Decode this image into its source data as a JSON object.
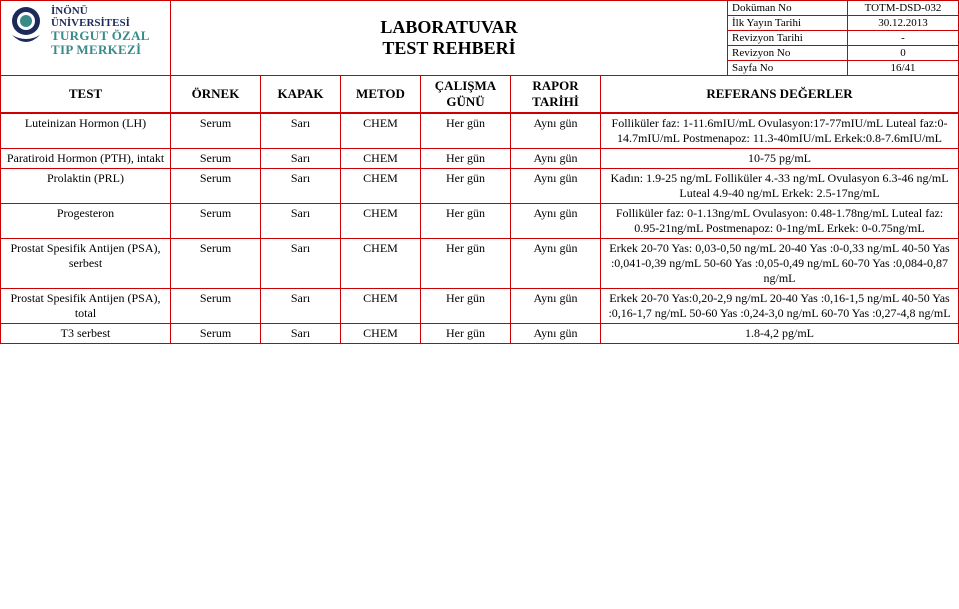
{
  "header": {
    "logo": {
      "line1": "İNÖNÜ ÜNİVERSİTESİ",
      "line2": "TURGUT ÖZAL",
      "line3": "TIP MERKEZİ"
    },
    "title_line1": "LABORATUVAR",
    "title_line2": "TEST REHBERİ",
    "docinfo": [
      {
        "label": "Doküman No",
        "value": "TOTM-DSD-032"
      },
      {
        "label": "İlk Yayın Tarihi",
        "value": "30.12.2013"
      },
      {
        "label": "Revizyon Tarihi",
        "value": "-"
      },
      {
        "label": "Revizyon No",
        "value": "0"
      },
      {
        "label": "Sayfa No",
        "value": "16/41"
      }
    ]
  },
  "columns": {
    "test": "TEST",
    "ornek": "ÖRNEK",
    "kapak": "KAPAK",
    "metod": "METOD",
    "calisma": "ÇALIŞMA GÜNÜ",
    "rapor": "RAPOR TARİHİ",
    "ref": "REFERANS DEĞERLER"
  },
  "rows": [
    {
      "test": "Luteinizan Hormon (LH)",
      "ornek": "Serum",
      "kapak": "Sarı",
      "metod": "CHEM",
      "calisma": "Her gün",
      "rapor": "Aynı gün",
      "ref": "Folliküler faz: 1-11.6mIU/mL Ovulasyon:17-77mIU/mL Luteal faz:0-14.7mIU/mL Postmenapoz: 11.3-40mIU/mL Erkek:0.8-7.6mIU/mL"
    },
    {
      "test": "Paratiroid Hormon (PTH), intakt",
      "ornek": "Serum",
      "kapak": "Sarı",
      "metod": "CHEM",
      "calisma": "Her gün",
      "rapor": "Aynı gün",
      "ref": "10-75 pg/mL"
    },
    {
      "test": "Prolaktin (PRL)",
      "ornek": "Serum",
      "kapak": "Sarı",
      "metod": "CHEM",
      "calisma": "Her gün",
      "rapor": "Aynı gün",
      "ref": "Kadın: 1.9-25 ng/mL Folliküler 4.-33 ng/mL Ovulasyon 6.3-46 ng/mL Luteal 4.9-40 ng/mL Erkek: 2.5-17ng/mL"
    },
    {
      "test": "Progesteron",
      "ornek": "Serum",
      "kapak": "Sarı",
      "metod": "CHEM",
      "calisma": "Her gün",
      "rapor": "Aynı gün",
      "ref": "Folliküler faz: 0-1.13ng/mL Ovulasyon: 0.48-1.78ng/mL Luteal faz: 0.95-21ng/mL Postmenapoz: 0-1ng/mL Erkek: 0-0.75ng/mL"
    },
    {
      "test": "Prostat Spesifik Antijen (PSA), serbest",
      "ornek": "Serum",
      "kapak": "Sarı",
      "metod": "CHEM",
      "calisma": "Her gün",
      "rapor": "Aynı gün",
      "ref": "Erkek 20-70 Yas: 0,03-0,50 ng/mL 20-40 Yas :0-0,33 ng/mL 40-50 Yas :0,041-0,39 ng/mL 50-60 Yas :0,05-0,49 ng/mL 60-70 Yas :0,084-0,87 ng/mL"
    },
    {
      "test": "Prostat Spesifik Antijen (PSA), total",
      "ornek": "Serum",
      "kapak": "Sarı",
      "metod": "CHEM",
      "calisma": "Her gün",
      "rapor": "Aynı gün",
      "ref": "Erkek 20-70 Yas:0,20-2,9 ng/mL 20-40 Yas :0,16-1,5 ng/mL 40-50 Yas :0,16-1,7 ng/mL 50-60 Yas :0,24-3,0 ng/mL 60-70 Yas :0,27-4,8 ng/mL"
    },
    {
      "test": "T3 serbest",
      "ornek": "Serum",
      "kapak": "Sarı",
      "metod": "CHEM",
      "calisma": "Her gün",
      "rapor": "Aynı gün",
      "ref": "1.8-4,2 pg/mL"
    }
  ],
  "colors": {
    "border": "#c00",
    "logo_primary": "#1b2a5b",
    "logo_secondary": "#3a8a89"
  }
}
